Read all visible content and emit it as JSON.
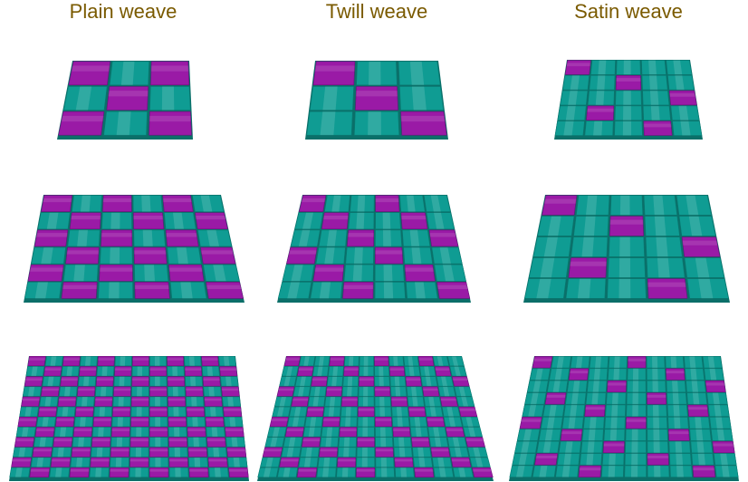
{
  "titles": [
    "Plain weave",
    "Twill weave",
    "Satin weave"
  ],
  "colors": {
    "title": "#7a5a00",
    "warp": "#0f9c93",
    "weft": "#9a1aa6",
    "background": "#ffffff"
  },
  "panels": [
    {
      "pattern": "plain",
      "yarns": 3,
      "repeat": 3
    },
    {
      "pattern": "twill",
      "yarns": 3,
      "repeat": 3
    },
    {
      "pattern": "satin",
      "yarns": 5,
      "repeat": 5
    },
    {
      "pattern": "plain",
      "yarns": 6,
      "repeat": 3
    },
    {
      "pattern": "twill",
      "yarns": 6,
      "repeat": 3
    },
    {
      "pattern": "satin",
      "yarns": 5,
      "repeat": 5
    },
    {
      "pattern": "plain",
      "yarns": 12,
      "repeat": 3
    },
    {
      "pattern": "twill",
      "yarns": 12,
      "repeat": 3
    },
    {
      "pattern": "satin",
      "yarns": 10,
      "repeat": 5
    }
  ]
}
